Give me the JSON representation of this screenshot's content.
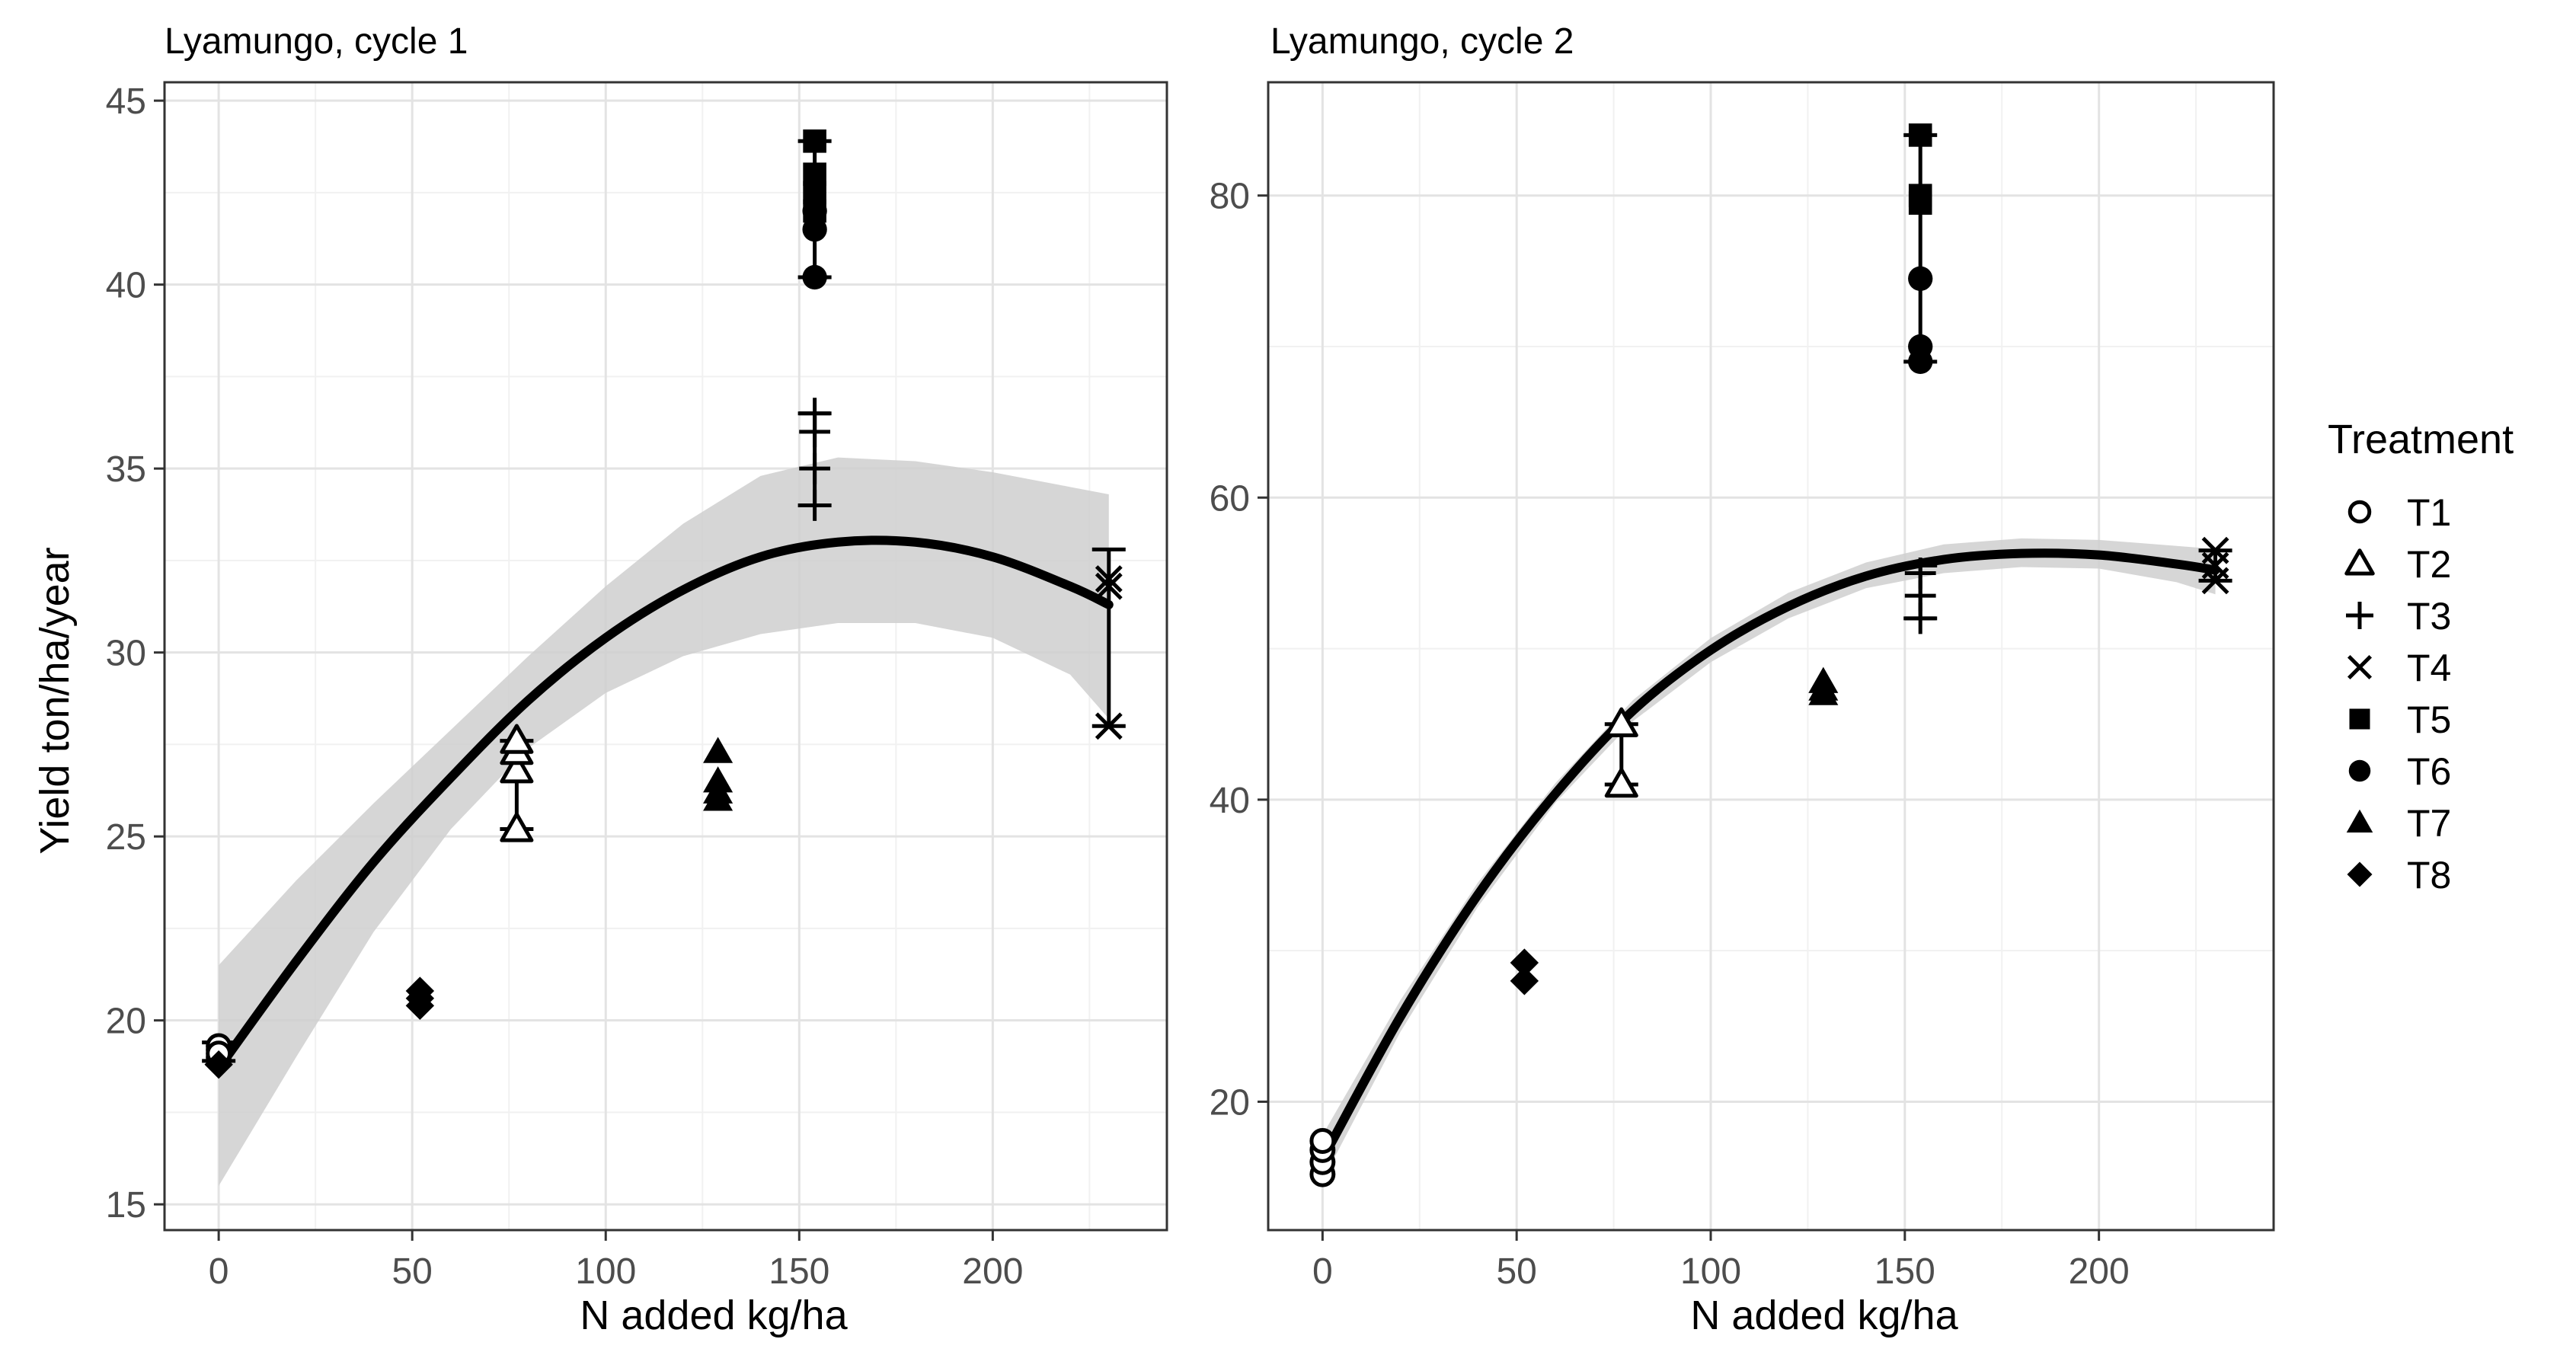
{
  "chart_data": [
    {
      "type": "scatter",
      "title": "Lyamungo, cycle 1",
      "xlabel": "N added kg/ha",
      "ylabel": "Yield ton/ha/year",
      "xlim": [
        -14,
        245
      ],
      "ylim": [
        14.3,
        45.5
      ],
      "xticks": [
        0,
        50,
        100,
        150,
        200
      ],
      "yticks": [
        15,
        20,
        25,
        30,
        35,
        40,
        45
      ],
      "xticklabels": [
        "0",
        "50",
        "100",
        "150",
        "200"
      ],
      "yticklabels": [
        "15",
        "20",
        "25",
        "30",
        "35",
        "40",
        "45"
      ],
      "fit": {
        "x": [
          0,
          20,
          40,
          60,
          80,
          100,
          120,
          140,
          160,
          180,
          200,
          220,
          230
        ],
        "y": [
          18.7,
          21.6,
          24.3,
          26.6,
          28.7,
          30.4,
          31.7,
          32.6,
          33.0,
          33.0,
          32.6,
          31.8,
          31.3
        ],
        "lower": [
          15.5,
          19.0,
          22.4,
          25.2,
          27.4,
          28.9,
          29.9,
          30.5,
          30.8,
          30.8,
          30.4,
          29.4,
          28.2
        ],
        "upper": [
          21.5,
          23.8,
          25.9,
          27.9,
          29.9,
          31.8,
          33.5,
          34.8,
          35.3,
          35.2,
          34.9,
          34.5,
          34.3
        ]
      },
      "series": [
        {
          "name": "T1",
          "shape": "circle-open",
          "x": [
            0,
            0,
            0,
            0
          ],
          "y": [
            19.0,
            19.2,
            19.3,
            19.1
          ]
        },
        {
          "name": "T2",
          "shape": "triangle-open",
          "x": [
            77,
            77,
            77,
            77
          ],
          "y": [
            25.2,
            26.8,
            27.3,
            27.6
          ]
        },
        {
          "name": "T3",
          "shape": "plus",
          "x": [
            154,
            154,
            154,
            154
          ],
          "y": [
            34.0,
            35.0,
            36.0,
            36.5
          ]
        },
        {
          "name": "T4",
          "shape": "cross",
          "x": [
            230,
            230,
            230
          ],
          "y": [
            28.0,
            32.0,
            31.8
          ]
        },
        {
          "name": "T5",
          "shape": "square",
          "x": [
            154,
            154,
            154,
            154
          ],
          "y": [
            42.0,
            42.5,
            43.0,
            43.9
          ]
        },
        {
          "name": "T6",
          "shape": "circle",
          "x": [
            154,
            154,
            154
          ],
          "y": [
            40.2,
            41.5,
            42.0
          ]
        },
        {
          "name": "T7",
          "shape": "triangle",
          "x": [
            129,
            129,
            129,
            129
          ],
          "y": [
            26.0,
            26.2,
            26.5,
            27.3
          ]
        },
        {
          "name": "T8",
          "shape": "diamond",
          "x": [
            52,
            52,
            52,
            0
          ],
          "y": [
            20.4,
            20.6,
            20.8,
            18.8
          ]
        }
      ],
      "error_bars": [
        {
          "x": 0,
          "low": 18.9,
          "high": 19.4
        },
        {
          "x": 77,
          "low": 25.2,
          "high": 27.6
        },
        {
          "x": 154,
          "low": 34.0,
          "high": 36.5
        },
        {
          "x": 230,
          "low": 28.0,
          "high": 32.8
        },
        {
          "x": 154,
          "low": 40.2,
          "high": 43.9
        }
      ]
    },
    {
      "type": "scatter",
      "title": "Lyamungo, cycle 2",
      "xlabel": "N added kg/ha",
      "ylabel": "",
      "xlim": [
        -14,
        245
      ],
      "ylim": [
        11.5,
        87.5
      ],
      "xticks": [
        0,
        50,
        100,
        150,
        200
      ],
      "yticks": [
        20,
        40,
        60,
        80
      ],
      "xticklabels": [
        "0",
        "50",
        "100",
        "150",
        "200"
      ],
      "yticklabels": [
        "20",
        "40",
        "60",
        "80"
      ],
      "fit": {
        "x": [
          0,
          20,
          40,
          60,
          80,
          100,
          120,
          140,
          160,
          180,
          200,
          220,
          230
        ],
        "y": [
          16.2,
          25.6,
          33.7,
          40.4,
          45.9,
          49.9,
          52.8,
          54.8,
          55.9,
          56.3,
          56.2,
          55.6,
          55.2
        ],
        "lower": [
          14.8,
          24.6,
          32.9,
          39.8,
          45.2,
          49.1,
          52.0,
          54.0,
          55.0,
          55.4,
          55.3,
          54.4,
          53.6
        ],
        "upper": [
          17.8,
          26.7,
          34.5,
          41.1,
          46.6,
          50.7,
          53.7,
          55.7,
          56.9,
          57.3,
          57.2,
          56.8,
          56.6
        ]
      },
      "series": [
        {
          "name": "T1",
          "shape": "circle-open",
          "x": [
            0,
            0,
            0,
            0
          ],
          "y": [
            15.2,
            16.0,
            16.8,
            17.4
          ]
        },
        {
          "name": "T2",
          "shape": "triangle-open",
          "x": [
            77,
            77
          ],
          "y": [
            41.0,
            45.0
          ]
        },
        {
          "name": "T3",
          "shape": "plus",
          "x": [
            154,
            154,
            154
          ],
          "y": [
            52.0,
            55.0,
            53.5
          ]
        },
        {
          "name": "T4",
          "shape": "cross",
          "x": [
            230,
            230,
            230
          ],
          "y": [
            54.5,
            55.5,
            56.5
          ]
        },
        {
          "name": "T5",
          "shape": "square",
          "x": [
            154,
            154,
            154
          ],
          "y": [
            79.5,
            80.0,
            84.0
          ]
        },
        {
          "name": "T6",
          "shape": "circle",
          "x": [
            154,
            154,
            154
          ],
          "y": [
            69.0,
            70.0,
            74.5
          ]
        },
        {
          "name": "T7",
          "shape": "triangle",
          "x": [
            129,
            129,
            129
          ],
          "y": [
            47.0,
            47.3,
            47.8
          ]
        },
        {
          "name": "T8",
          "shape": "diamond",
          "x": [
            52,
            52
          ],
          "y": [
            28.0,
            29.2
          ]
        }
      ],
      "error_bars": [
        {
          "x": 77,
          "low": 41.0,
          "high": 45.0
        },
        {
          "x": 154,
          "low": 52.0,
          "high": 55.5
        },
        {
          "x": 230,
          "low": 54.5,
          "high": 56.5
        },
        {
          "x": 154,
          "low": 69.0,
          "high": 84.0
        }
      ]
    }
  ],
  "legend": {
    "title": "Treatment",
    "items": [
      {
        "label": "T1",
        "shape": "circle-open"
      },
      {
        "label": "T2",
        "shape": "triangle-open"
      },
      {
        "label": "T3",
        "shape": "plus"
      },
      {
        "label": "T4",
        "shape": "cross"
      },
      {
        "label": "T5",
        "shape": "square"
      },
      {
        "label": "T6",
        "shape": "circle"
      },
      {
        "label": "T7",
        "shape": "triangle"
      },
      {
        "label": "T8",
        "shape": "diamond"
      }
    ]
  }
}
